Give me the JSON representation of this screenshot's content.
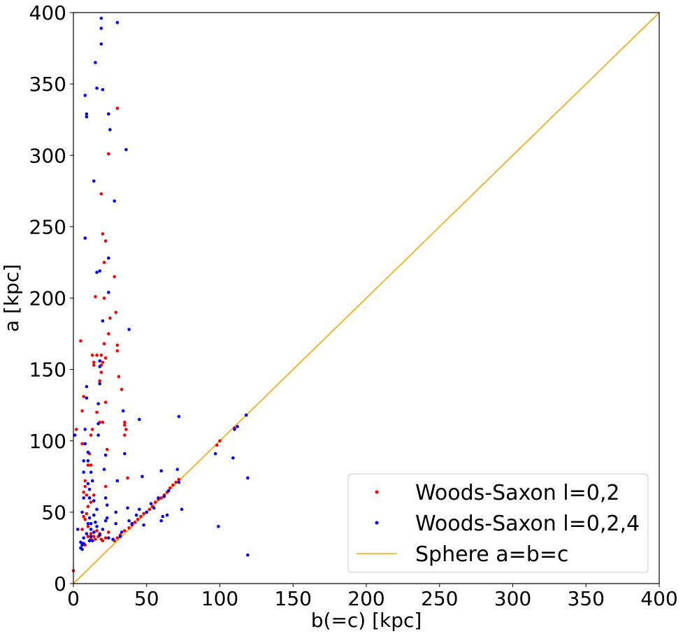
{
  "chart_data": {
    "type": "scatter",
    "title": "",
    "xlabel": "b(=c) [kpc]",
    "ylabel": "a  [kpc]",
    "xlim": [
      0,
      400
    ],
    "ylim": [
      0,
      400
    ],
    "xticks": [
      0,
      50,
      100,
      150,
      200,
      250,
      300,
      350,
      400
    ],
    "yticks": [
      0,
      50,
      100,
      150,
      200,
      250,
      300,
      350,
      400
    ],
    "grid": false,
    "legend_position": "lower-right",
    "series": [
      {
        "name": "Woods-Saxon l=0,2",
        "kind": "points",
        "color": "#ff0000",
        "points": [
          [
            0,
            9
          ],
          [
            2,
            108
          ],
          [
            5,
            170
          ],
          [
            6,
            121
          ],
          [
            7,
            131
          ],
          [
            6,
            98
          ],
          [
            7,
            64
          ],
          [
            8,
            72
          ],
          [
            8,
            68
          ],
          [
            9,
            62
          ],
          [
            10,
            83
          ],
          [
            12,
            83
          ],
          [
            11,
            91
          ],
          [
            12,
            104
          ],
          [
            13,
            108
          ],
          [
            14,
            153
          ],
          [
            14,
            155
          ],
          [
            16,
            160
          ],
          [
            13,
            160
          ],
          [
            15,
            201
          ],
          [
            16,
            120
          ],
          [
            18,
            142
          ],
          [
            19,
            148
          ],
          [
            19,
            153
          ],
          [
            20,
            155
          ],
          [
            19,
            160
          ],
          [
            18,
            113
          ],
          [
            20,
            113
          ],
          [
            22,
            127
          ],
          [
            21,
            168
          ],
          [
            22,
            158
          ],
          [
            20,
            245
          ],
          [
            21,
            225
          ],
          [
            22,
            240
          ],
          [
            21,
            200
          ],
          [
            19,
            273
          ],
          [
            23,
            94
          ],
          [
            22,
            68
          ],
          [
            24,
            175
          ],
          [
            25,
            186
          ],
          [
            24,
            301
          ],
          [
            28,
            215
          ],
          [
            29,
            190
          ],
          [
            30,
            163
          ],
          [
            30,
            167
          ],
          [
            31,
            145
          ],
          [
            30,
            333
          ],
          [
            33,
            136
          ],
          [
            35,
            104
          ],
          [
            35,
            113
          ],
          [
            35,
            111
          ],
          [
            36,
            108
          ],
          [
            37,
            74
          ],
          [
            6,
            38
          ],
          [
            8,
            45
          ],
          [
            10,
            40
          ],
          [
            12,
            35
          ],
          [
            14,
            33
          ],
          [
            16,
            37
          ],
          [
            18,
            35
          ],
          [
            20,
            30
          ],
          [
            22,
            32
          ],
          [
            24,
            36
          ],
          [
            6,
            28
          ],
          [
            8,
            27
          ],
          [
            10,
            33
          ],
          [
            12,
            31
          ],
          [
            15,
            31
          ],
          [
            17,
            33
          ],
          [
            19,
            31
          ],
          [
            7,
            47
          ],
          [
            9,
            49
          ],
          [
            12,
            57
          ],
          [
            14,
            62
          ],
          [
            10,
            54
          ],
          [
            11,
            60
          ],
          [
            28,
            30
          ],
          [
            30,
            32
          ],
          [
            32,
            34
          ],
          [
            35,
            37
          ],
          [
            38,
            39
          ],
          [
            40,
            41
          ],
          [
            42,
            43
          ],
          [
            44,
            45
          ],
          [
            46,
            47
          ],
          [
            48,
            49
          ],
          [
            50,
            50
          ],
          [
            52,
            52
          ],
          [
            54,
            54
          ],
          [
            56,
            57
          ],
          [
            58,
            59
          ],
          [
            60,
            60
          ],
          [
            62,
            62
          ],
          [
            64,
            64
          ],
          [
            66,
            67
          ],
          [
            68,
            69
          ],
          [
            70,
            71
          ],
          [
            72,
            73
          ],
          [
            98,
            97
          ],
          [
            100,
            100
          ],
          [
            110,
            109
          ],
          [
            118,
            118
          ]
        ]
      },
      {
        "name": "Woods-Saxon l=0,2,4",
        "kind": "points",
        "color": "#0000ff",
        "points": [
          [
            1,
            104
          ],
          [
            3,
            38
          ],
          [
            5,
            29
          ],
          [
            6,
            24
          ],
          [
            6,
            27
          ],
          [
            7,
            32
          ],
          [
            6,
            50
          ],
          [
            7,
            60
          ],
          [
            7,
            78
          ],
          [
            7,
            86
          ],
          [
            8,
            98
          ],
          [
            8,
            108
          ],
          [
            9,
            130
          ],
          [
            9,
            138
          ],
          [
            8,
            242
          ],
          [
            8,
            342
          ],
          [
            9,
            327
          ],
          [
            9,
            329
          ],
          [
            10,
            92
          ],
          [
            10,
            86
          ],
          [
            10,
            70
          ],
          [
            11,
            66
          ],
          [
            11,
            60
          ],
          [
            11,
            46
          ],
          [
            12,
            42
          ],
          [
            12,
            38
          ],
          [
            12,
            33
          ],
          [
            13,
            30
          ],
          [
            14,
            36
          ],
          [
            14,
            48
          ],
          [
            13,
            72
          ],
          [
            12,
            78
          ],
          [
            14,
            282
          ],
          [
            15,
            365
          ],
          [
            16,
            347
          ],
          [
            16,
            218
          ],
          [
            17,
            126
          ],
          [
            17,
            112
          ],
          [
            17,
            104
          ],
          [
            16,
            52
          ],
          [
            15,
            43
          ],
          [
            18,
            140
          ],
          [
            18,
            152
          ],
          [
            18,
            156
          ],
          [
            18,
            219
          ],
          [
            19,
            378
          ],
          [
            19,
            389
          ],
          [
            19,
            396
          ],
          [
            20,
            184
          ],
          [
            20,
            346
          ],
          [
            21,
            80
          ],
          [
            22,
            90
          ],
          [
            22,
            60
          ],
          [
            23,
            55
          ],
          [
            23,
            46
          ],
          [
            24,
            228
          ],
          [
            24,
            204
          ],
          [
            24,
            329
          ],
          [
            25,
            318
          ],
          [
            27,
            31
          ],
          [
            28,
            268
          ],
          [
            29,
            42
          ],
          [
            29,
            50
          ],
          [
            30,
            393
          ],
          [
            30,
            72
          ],
          [
            32,
            33
          ],
          [
            33,
            36
          ],
          [
            34,
            121
          ],
          [
            35,
            91
          ],
          [
            36,
            304
          ],
          [
            37,
            53
          ],
          [
            38,
            44
          ],
          [
            38,
            178
          ],
          [
            40,
            42
          ],
          [
            43,
            48
          ],
          [
            45,
            52
          ],
          [
            45,
            115
          ],
          [
            47,
            75
          ],
          [
            48,
            41
          ],
          [
            50,
            50
          ],
          [
            53,
            56
          ],
          [
            55,
            53
          ],
          [
            58,
            60
          ],
          [
            60,
            79
          ],
          [
            60,
            44
          ],
          [
            61,
            47
          ],
          [
            62,
            61
          ],
          [
            64,
            48
          ],
          [
            65,
            65
          ],
          [
            71,
            80
          ],
          [
            72,
            71
          ],
          [
            72,
            117
          ],
          [
            74,
            52
          ],
          [
            97,
            91
          ],
          [
            99,
            40
          ],
          [
            109,
            88
          ],
          [
            110,
            108
          ],
          [
            112,
            110
          ],
          [
            118,
            118
          ],
          [
            119,
            74
          ],
          [
            119,
            20
          ],
          [
            5,
            25
          ],
          [
            7,
            28
          ],
          [
            9,
            35
          ],
          [
            10,
            42
          ],
          [
            11,
            30
          ],
          [
            16,
            40
          ],
          [
            18,
            34
          ],
          [
            20,
            38
          ],
          [
            22,
            44
          ],
          [
            24,
            32
          ],
          [
            14,
            58
          ]
        ]
      },
      {
        "name": "Sphere a=b=c",
        "kind": "line",
        "color": "#ffa500",
        "x": [
          0,
          400
        ],
        "y": [
          0,
          400
        ]
      }
    ]
  }
}
